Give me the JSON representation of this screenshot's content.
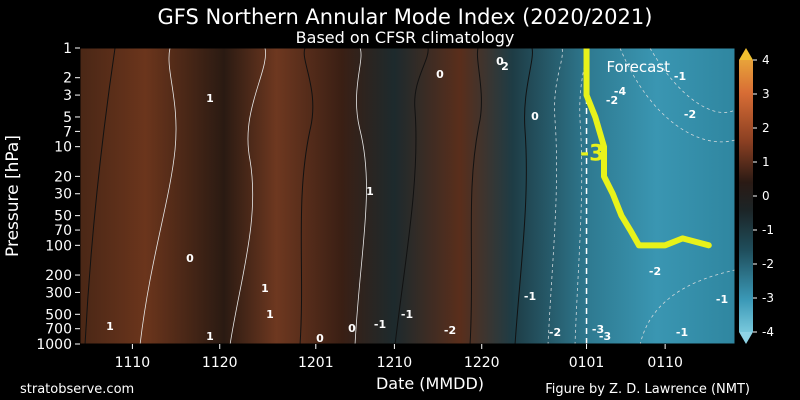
{
  "chart_data": {
    "type": "heatmap",
    "title": "GFS Northern Annular Mode Index (2020/2021)",
    "subtitle": "Based on CFSR climatology",
    "xlabel": "Date (MMDD)",
    "ylabel": "Pressure [hPa]",
    "x_ticks": [
      "1110",
      "1120",
      "1201",
      "1210",
      "1220",
      "0101",
      "0110"
    ],
    "y_ticks": [
      "1",
      "2",
      "3",
      "5",
      "7",
      "10",
      "20",
      "30",
      "50",
      "70",
      "100",
      "200",
      "300",
      "500",
      "700",
      "1000"
    ],
    "y_scale": "log",
    "ylim": [
      1000,
      1
    ],
    "colorbar": {
      "ticks": [
        "4",
        "3",
        "2",
        "1",
        "0",
        "-1",
        "-2",
        "-3",
        "-4"
      ],
      "range": [
        -4,
        4
      ],
      "colors": {
        "positive": "#c05a2e",
        "neutral": "#1c1c1c",
        "negative": "#3d9bb8"
      }
    },
    "forecast_start": "0101",
    "forecast_label": "Forecast",
    "highlight_contour": {
      "value": -3,
      "label": "-3",
      "color": "#e8f21a",
      "points": [
        {
          "date": "0101",
          "hpa": 1
        },
        {
          "date": "0101",
          "hpa": 3
        },
        {
          "date": "0102",
          "hpa": 5
        },
        {
          "date": "0103",
          "hpa": 10
        },
        {
          "date": "0103",
          "hpa": 20
        },
        {
          "date": "0104",
          "hpa": 30
        },
        {
          "date": "0105",
          "hpa": 50
        },
        {
          "date": "0106",
          "hpa": 70
        },
        {
          "date": "0107",
          "hpa": 100
        },
        {
          "date": "0110",
          "hpa": 100
        },
        {
          "date": "0112",
          "hpa": 85
        },
        {
          "date": "0115",
          "hpa": 100
        }
      ]
    },
    "contour_labels": [
      "1",
      "1",
      "0",
      "0",
      "0",
      "-1",
      "-1",
      "0",
      "1",
      "1",
      "0",
      "0",
      "-1",
      "-2",
      "-2",
      "-3",
      "-2",
      "-1",
      "-1",
      "-1",
      "-2",
      "-2",
      "-3",
      "-4",
      "-2",
      "1",
      "1",
      "2"
    ]
  },
  "footer": {
    "left": "stratobserve.com",
    "right": "Figure by Z. D. Lawrence (NMT)"
  }
}
